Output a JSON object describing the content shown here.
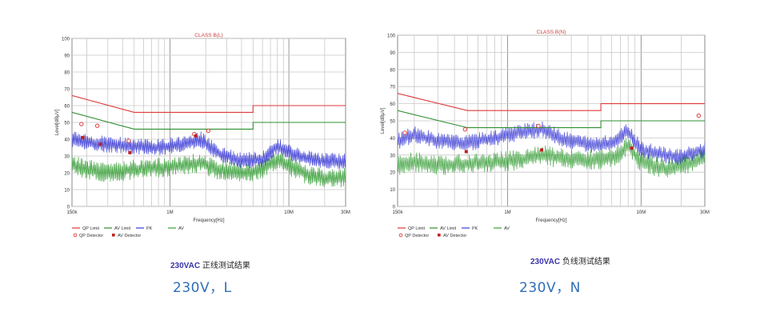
{
  "chart_data": [
    {
      "type": "line",
      "title": "CLASS B(L)",
      "xlabel": "Frequency[Hz]",
      "ylabel": "Level[dBµV]",
      "xscale": "log",
      "xlim": [
        150000,
        30000000
      ],
      "ylim": [
        0,
        100
      ],
      "x_ticks": [
        {
          "value": 150000,
          "label": "150k"
        },
        {
          "value": 1000000,
          "label": "1M"
        },
        {
          "value": 10000000,
          "label": "10M"
        },
        {
          "value": 30000000,
          "label": "30M"
        }
      ],
      "y_ticks": [
        0,
        10,
        20,
        30,
        40,
        50,
        60,
        70,
        80,
        90,
        100
      ],
      "grid": true,
      "legend": [
        {
          "label": "QP Limit",
          "color": "#e03a3a",
          "style": "line"
        },
        {
          "label": "AV Limit",
          "color": "#2f8f2f",
          "style": "line"
        },
        {
          "label": "PK",
          "color": "#3b3bd6",
          "style": "line"
        },
        {
          "label": "AV",
          "color": "#3aa03a",
          "style": "line"
        },
        {
          "label": "QP Detector",
          "color": "#e03a3a",
          "style": "open-marker"
        },
        {
          "label": "AV Detector",
          "color": "#c02020",
          "style": "filled-marker"
        }
      ],
      "series": [
        {
          "name": "QP Limit",
          "color": "#e03a3a",
          "x": [
            150000,
            500000,
            500000,
            5000000,
            5000000,
            30000000
          ],
          "y": [
            66,
            56,
            56,
            56,
            60,
            60
          ]
        },
        {
          "name": "AV Limit",
          "color": "#2f8f2f",
          "x": [
            150000,
            500000,
            500000,
            5000000,
            5000000,
            30000000
          ],
          "y": [
            56,
            46,
            46,
            46,
            50,
            50
          ]
        },
        {
          "name": "PK",
          "color": "#3b3bd6",
          "x": [
            150000,
            200000,
            300000,
            500000,
            800000,
            1200000,
            1800000,
            2500000,
            4000000,
            6000000,
            8000000,
            10000000,
            15000000,
            20000000,
            30000000
          ],
          "y": [
            40,
            38,
            37,
            36,
            35,
            37,
            40,
            32,
            27,
            28,
            36,
            32,
            28,
            27,
            27
          ]
        },
        {
          "name": "AV",
          "color": "#3aa03a",
          "x": [
            150000,
            200000,
            300000,
            500000,
            800000,
            1200000,
            1800000,
            2500000,
            4000000,
            6000000,
            8000000,
            10000000,
            15000000,
            20000000,
            30000000
          ],
          "y": [
            25,
            22,
            20,
            22,
            23,
            24,
            26,
            22,
            20,
            22,
            28,
            24,
            18,
            17,
            17
          ]
        }
      ],
      "qp_detector": {
        "x": [
          180000,
          245000,
          450000,
          1600000,
          2100000
        ],
        "y": [
          49,
          48,
          39,
          43,
          45
        ]
      },
      "av_detector": {
        "x": [
          185000,
          260000,
          460000,
          1650000
        ],
        "y": [
          41,
          37,
          32,
          42
        ]
      }
    },
    {
      "type": "line",
      "title": "CLASS B(N)",
      "xlabel": "Frequency[Hz]",
      "ylabel": "Level[dBµV]",
      "xscale": "log",
      "xlim": [
        150000,
        30000000
      ],
      "ylim": [
        0,
        100
      ],
      "x_ticks": [
        {
          "value": 150000,
          "label": "150k"
        },
        {
          "value": 1000000,
          "label": "1M"
        },
        {
          "value": 10000000,
          "label": "10M"
        },
        {
          "value": 30000000,
          "label": "30M"
        }
      ],
      "y_ticks": [
        0,
        10,
        20,
        30,
        40,
        50,
        60,
        70,
        80,
        90,
        100
      ],
      "grid": true,
      "legend": [
        {
          "label": "QP Limit",
          "color": "#e03a3a",
          "style": "line"
        },
        {
          "label": "AV Limit",
          "color": "#2f8f2f",
          "style": "line"
        },
        {
          "label": "PK",
          "color": "#3b3bd6",
          "style": "line"
        },
        {
          "label": "AV",
          "color": "#3aa03a",
          "style": "line"
        },
        {
          "label": "QP Detector",
          "color": "#e03a3a",
          "style": "open-marker"
        },
        {
          "label": "AV Detector",
          "color": "#c02020",
          "style": "filled-marker"
        }
      ],
      "series": [
        {
          "name": "QP Limit",
          "color": "#e03a3a",
          "x": [
            150000,
            500000,
            500000,
            5000000,
            5000000,
            30000000
          ],
          "y": [
            66,
            56,
            56,
            56,
            60,
            60
          ]
        },
        {
          "name": "AV Limit",
          "color": "#2f8f2f",
          "x": [
            150000,
            500000,
            500000,
            5000000,
            5000000,
            30000000
          ],
          "y": [
            56,
            46,
            46,
            46,
            50,
            50
          ]
        },
        {
          "name": "PK",
          "color": "#3b3bd6",
          "x": [
            150000,
            200000,
            300000,
            500000,
            800000,
            1200000,
            1800000,
            2500000,
            4000000,
            6000000,
            8000000,
            10000000,
            15000000,
            20000000,
            30000000
          ],
          "y": [
            38,
            42,
            38,
            37,
            40,
            43,
            45,
            40,
            36,
            37,
            44,
            33,
            30,
            29,
            33
          ]
        },
        {
          "name": "AV",
          "color": "#3aa03a",
          "x": [
            150000,
            200000,
            300000,
            500000,
            800000,
            1200000,
            1800000,
            2500000,
            4000000,
            6000000,
            8000000,
            10000000,
            15000000,
            20000000,
            30000000
          ],
          "y": [
            24,
            26,
            24,
            25,
            26,
            27,
            30,
            28,
            27,
            28,
            35,
            26,
            22,
            24,
            28
          ]
        }
      ],
      "qp_detector": {
        "x": [
          170000,
          480000,
          1700000,
          27000000
        ],
        "y": [
          43,
          45,
          47,
          53
        ]
      },
      "av_detector": {
        "x": [
          490000,
          1800000,
          8500000
        ],
        "y": [
          32,
          33,
          34
        ]
      }
    }
  ],
  "captions": {
    "left_chart": {
      "code": "230VAC",
      "text": "正线测试结果"
    },
    "right_chart": {
      "code": "230VAC",
      "text": "负线测试结果"
    },
    "left_main": "230V，L",
    "right_main": "230V，N"
  }
}
